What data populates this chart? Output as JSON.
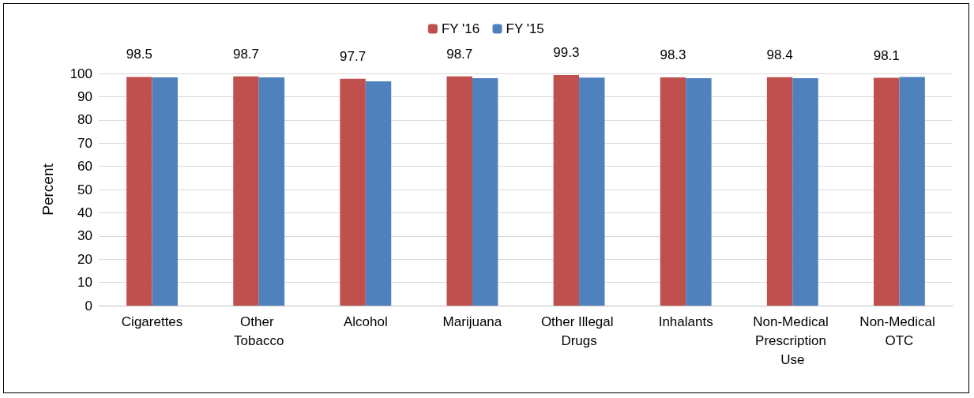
{
  "chart_data": {
    "type": "bar",
    "ylabel": "Percent",
    "categories": [
      "Cigarettes",
      "Other Tobacco",
      "Alcohol",
      "Marijuana",
      "Other Illegal Drugs",
      "Inhalants",
      "Non-Medical Prescription Use",
      "Non-Medical OTC"
    ],
    "series": [
      {
        "name": "FY '16",
        "color": "#c0504d",
        "values": [
          98.5,
          98.7,
          97.7,
          98.7,
          99.3,
          98.3,
          98.4,
          98.1
        ],
        "value_labels": [
          "98.5",
          "98.7",
          "97.7",
          "98.7",
          "99.3",
          "98.3",
          "98.4",
          "98.1"
        ]
      },
      {
        "name": "FY '15",
        "color": "#4f81bd",
        "values": [
          98.3,
          98.3,
          96.6,
          98.0,
          98.2,
          98.0,
          98.0,
          98.5
        ]
      }
    ],
    "ylim": [
      0,
      100
    ],
    "yticks": [
      0,
      10,
      20,
      30,
      40,
      50,
      60,
      70,
      80,
      90,
      100
    ],
    "grid": "y",
    "legend": "top"
  }
}
